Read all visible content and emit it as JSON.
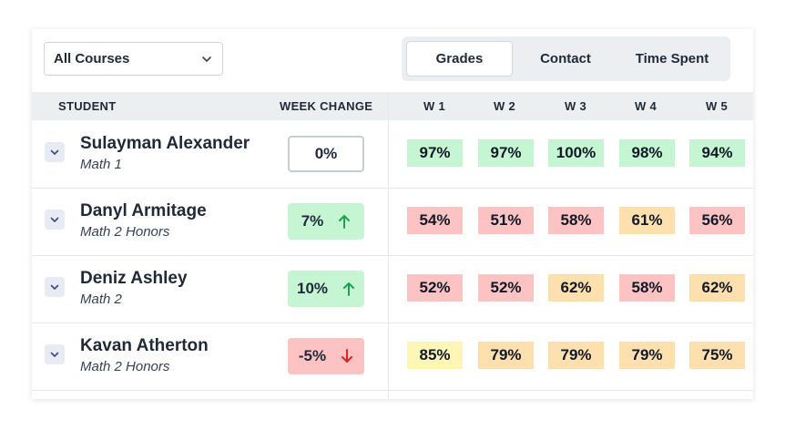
{
  "filter": {
    "selected": "All Courses"
  },
  "tabs": {
    "grades": "Grades",
    "contact": "Contact",
    "time_spent": "Time Spent"
  },
  "headers": {
    "student": "STUDENT",
    "week_change": "WEEK CHANGE",
    "w1": "W 1",
    "w2": "W 2",
    "w3": "W 3",
    "w4": "W 4",
    "w5": "W 5"
  },
  "colors": {
    "green": "#c5f5d3",
    "red": "#fdc3c3",
    "orange": "#fde0ae",
    "yellow": "#fef6b6",
    "up_arrow": "#16a34a",
    "down_arrow": "#dc2626"
  },
  "students": [
    {
      "name": "Sulayman Alexander",
      "course": "Math 1",
      "change": "0%",
      "trend": "neutral",
      "grades": [
        {
          "v": "97%",
          "c": "green"
        },
        {
          "v": "97%",
          "c": "green"
        },
        {
          "v": "100%",
          "c": "green"
        },
        {
          "v": "98%",
          "c": "green"
        },
        {
          "v": "94%",
          "c": "green"
        }
      ]
    },
    {
      "name": "Danyl Armitage",
      "course": "Math 2 Honors",
      "change": "7%",
      "trend": "up",
      "grades": [
        {
          "v": "54%",
          "c": "red"
        },
        {
          "v": "51%",
          "c": "red"
        },
        {
          "v": "58%",
          "c": "red"
        },
        {
          "v": "61%",
          "c": "orange"
        },
        {
          "v": "56%",
          "c": "red"
        }
      ]
    },
    {
      "name": "Deniz Ashley",
      "course": "Math 2",
      "change": "10%",
      "trend": "up",
      "grades": [
        {
          "v": "52%",
          "c": "red"
        },
        {
          "v": "52%",
          "c": "red"
        },
        {
          "v": "62%",
          "c": "orange"
        },
        {
          "v": "58%",
          "c": "red"
        },
        {
          "v": "62%",
          "c": "orange"
        }
      ]
    },
    {
      "name": "Kavan Atherton",
      "course": "Math 2 Honors",
      "change": "-5%",
      "trend": "down",
      "grades": [
        {
          "v": "85%",
          "c": "yellow"
        },
        {
          "v": "79%",
          "c": "orange"
        },
        {
          "v": "79%",
          "c": "orange"
        },
        {
          "v": "79%",
          "c": "orange"
        },
        {
          "v": "75%",
          "c": "orange"
        }
      ]
    }
  ]
}
